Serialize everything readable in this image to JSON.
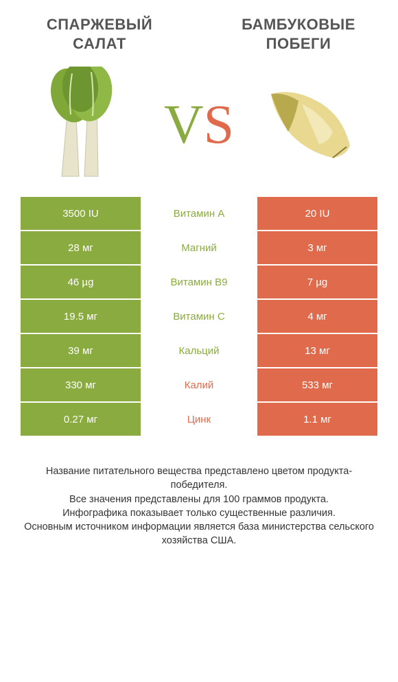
{
  "header": {
    "left_title": "СПАРЖЕВЫЙ САЛАТ",
    "right_title": "БАМБУКОВЫЕ ПОБЕГИ",
    "title_fontsize": 22,
    "title_color": "#555555"
  },
  "vs": {
    "v_color": "#8aab3f",
    "s_color": "#e06a4c"
  },
  "colors": {
    "left": "#8aab3f",
    "right": "#e06a4c",
    "background": "#ffffff"
  },
  "rows": [
    {
      "left": "3500 IU",
      "label": "Витамин A",
      "right": "20 IU",
      "winner": "left"
    },
    {
      "left": "28 мг",
      "label": "Магний",
      "right": "3 мг",
      "winner": "left"
    },
    {
      "left": "46 µg",
      "label": "Витамин B9",
      "right": "7 µg",
      "winner": "left"
    },
    {
      "left": "19.5 мг",
      "label": "Витамин C",
      "right": "4 мг",
      "winner": "left"
    },
    {
      "left": "39 мг",
      "label": "Кальций",
      "right": "13 мг",
      "winner": "left"
    },
    {
      "left": "330 мг",
      "label": "Калий",
      "right": "533 мг",
      "winner": "right"
    },
    {
      "left": "0.27 мг",
      "label": "Цинк",
      "right": "1.1 мг",
      "winner": "right"
    }
  ],
  "footer": {
    "line1": "Название питательного вещества представлено цветом продукта-победителя.",
    "line2": "Все значения представлены для 100 граммов продукта.",
    "line3": "Инфографика показывает только существенные различия.",
    "line4": "Основным источником информации является база министерства сельского хозяйства США."
  }
}
